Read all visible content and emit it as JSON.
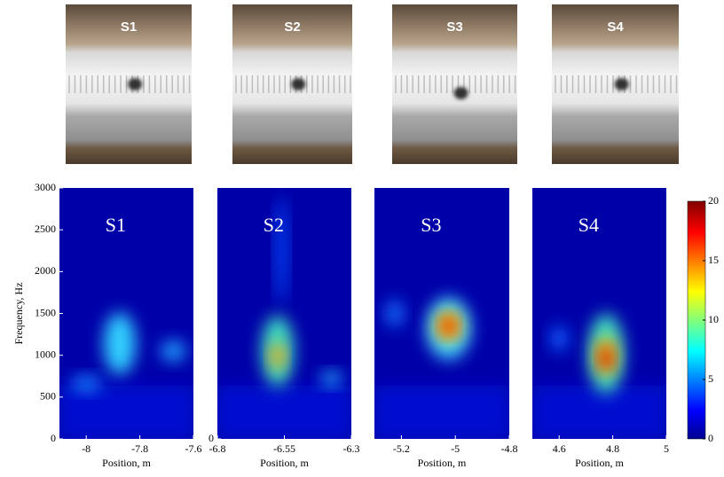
{
  "photos": [
    {
      "label": "S1"
    },
    {
      "label": "S2"
    },
    {
      "label": "S3"
    },
    {
      "label": "S4"
    }
  ],
  "chart_data": [
    {
      "type": "heatmap",
      "label": "S1",
      "xlabel": "Position, m",
      "ylabel": "Frequency, Hz",
      "xlim": [
        -8.1,
        -7.6
      ],
      "xticks": [
        -8,
        -7.8,
        -7.6
      ],
      "ylim": [
        0,
        3000
      ],
      "yticks": [
        0,
        500,
        1000,
        1500,
        2000,
        2500,
        3000
      ]
    },
    {
      "type": "heatmap",
      "label": "S2",
      "xlabel": "Position, m",
      "xlim": [
        -6.8,
        -6.3
      ],
      "xticks": [
        -6.8,
        -6.55,
        -6.3
      ],
      "ylim": [
        0,
        3000
      ],
      "yticks": [
        0
      ]
    },
    {
      "type": "heatmap",
      "label": "S3",
      "xlabel": "Position, m",
      "xlim": [
        -5.3,
        -4.8
      ],
      "xticks": [
        -5.2,
        -5,
        -4.8
      ],
      "ylim": [
        0,
        3000
      ]
    },
    {
      "type": "heatmap",
      "label": "S4",
      "xlabel": "Position, m",
      "xlim": [
        4.5,
        5
      ],
      "xticks": [
        4.6,
        4.8,
        5
      ],
      "ylim": [
        0,
        3000
      ]
    },
    {
      "type": "colorbar",
      "clim": [
        0,
        20
      ],
      "ticks": [
        0,
        5,
        10,
        15,
        20
      ]
    }
  ]
}
